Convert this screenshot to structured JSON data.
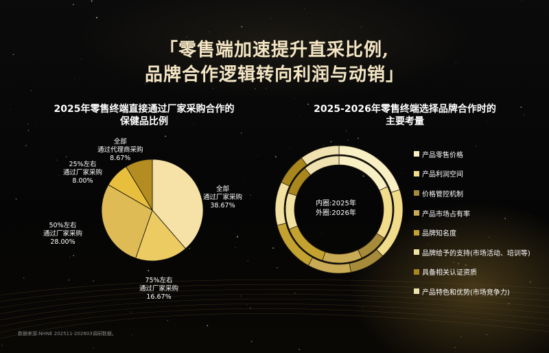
{
  "header": {
    "title_line1": "「零售端加速提升直采比例,",
    "title_line2": "品牌合作逻辑转向利润与动销」"
  },
  "left_panel": {
    "title_line1": "2025年零售终端直接通过厂家采购合作的",
    "title_line2": "保健品比例"
  },
  "right_panel": {
    "title_line1": "2025-2026年零售终端选择品牌合作时的",
    "title_line2": "主要考量",
    "center_line1": "内圈:2025年",
    "center_line2": "外圈:2026年"
  },
  "footnote": "数据来源:NHNE 202511-202603调研数据。",
  "chart_data": [
    {
      "type": "pie",
      "title": "2025年零售终端直接通过厂家采购合作的保健品比例",
      "slices": [
        {
          "label_line1": "全部",
          "label_line2": "通过厂家采购",
          "pct_text": "38.67%",
          "value": 38.67,
          "color": "#f6e2a6"
        },
        {
          "label_line1": "75%左右",
          "label_line2": "通过厂家采购",
          "pct_text": "16.67%",
          "value": 16.67,
          "color": "#eccb62"
        },
        {
          "label_line1": "50%左右",
          "label_line2": "通过厂家采购",
          "pct_text": "28.00%",
          "value": 28.0,
          "color": "#dfbb55"
        },
        {
          "label_line1": "25%左右",
          "label_line2": "通过厂家采购",
          "pct_text": "8.00%",
          "value": 8.0,
          "color": "#e8bf3c"
        },
        {
          "label_line1": "全部",
          "label_line2": "通过代理商采购",
          "pct_text": "8.67%",
          "value": 8.67,
          "color": "#b38d22"
        }
      ]
    },
    {
      "type": "donut",
      "title": "2025-2026年零售终端选择品牌合作时的主要考量",
      "categories": [
        "产品零售价格",
        "产品利润空间",
        "价格管控机制",
        "产品市场占有率",
        "品牌知名度",
        "品牌给予的支持(市场活动、培训等)",
        "具备相关认证资质",
        "产品特色和优势(市场竞争力)"
      ],
      "colors": [
        "#f9efc4",
        "#f1dc8c",
        "#a68c3a",
        "#c9ab55",
        "#c4a22f",
        "#f2e2a2",
        "#a9871c",
        "#efe2b0"
      ],
      "series": [
        {
          "name": "2025年",
          "ring": "inner",
          "values": [
            18,
            16,
            9,
            12,
            14,
            11,
            9,
            11
          ]
        },
        {
          "name": "2026年",
          "ring": "outer",
          "values": [
            20,
            18,
            9,
            11,
            13,
            11,
            8,
            10
          ]
        }
      ]
    }
  ]
}
